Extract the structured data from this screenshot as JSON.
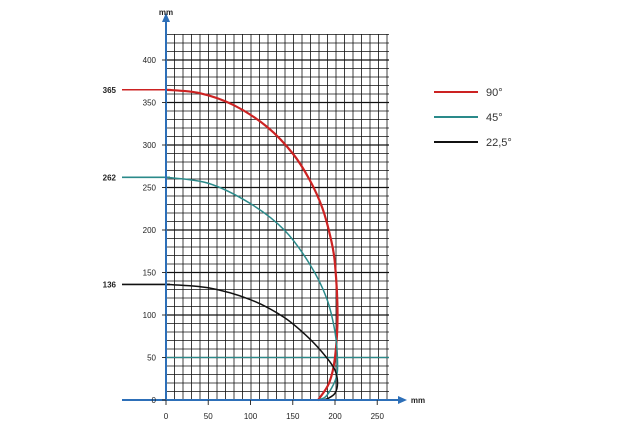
{
  "chart_data": {
    "type": "line",
    "x_unit": "mm",
    "y_unit": "mm",
    "xlim": [
      0,
      260
    ],
    "ylim": [
      0,
      430
    ],
    "x_ticks": [
      0,
      50,
      100,
      150,
      200,
      250
    ],
    "y_ticks": [
      0,
      50,
      100,
      150,
      200,
      250,
      300,
      350,
      400
    ],
    "y_callouts": [
      {
        "label": "365",
        "value": 365,
        "color": "#cc2222"
      },
      {
        "label": "262",
        "value": 262,
        "color": "#2a8a8a"
      },
      {
        "label": "136",
        "value": 136,
        "color": "#111111"
      }
    ],
    "grid": true,
    "legend_position": "right",
    "series": [
      {
        "name": "90°",
        "color": "#cc2222",
        "x": [
          0,
          40,
          80,
          120,
          150,
          170,
          185,
          195,
          200,
          203,
          200,
          193,
          180
        ],
        "y": [
          365,
          361,
          347,
          321,
          290,
          259,
          226,
          190,
          160,
          100,
          50,
          20,
          0
        ]
      },
      {
        "name": "45°",
        "color": "#2a8a8a",
        "x": [
          0,
          50,
          100,
          140,
          170,
          190,
          200,
          203,
          201,
          190,
          180
        ],
        "y": [
          262,
          255,
          231,
          200,
          160,
          120,
          80,
          45,
          25,
          5,
          0
        ]
      },
      {
        "name": "22,5°",
        "color": "#111111",
        "x": [
          0,
          50,
          100,
          140,
          170,
          190,
          200,
          203,
          200,
          192,
          185
        ],
        "y": [
          136,
          132,
          118,
          97,
          72,
          50,
          35,
          20,
          8,
          2,
          0
        ]
      }
    ]
  }
}
